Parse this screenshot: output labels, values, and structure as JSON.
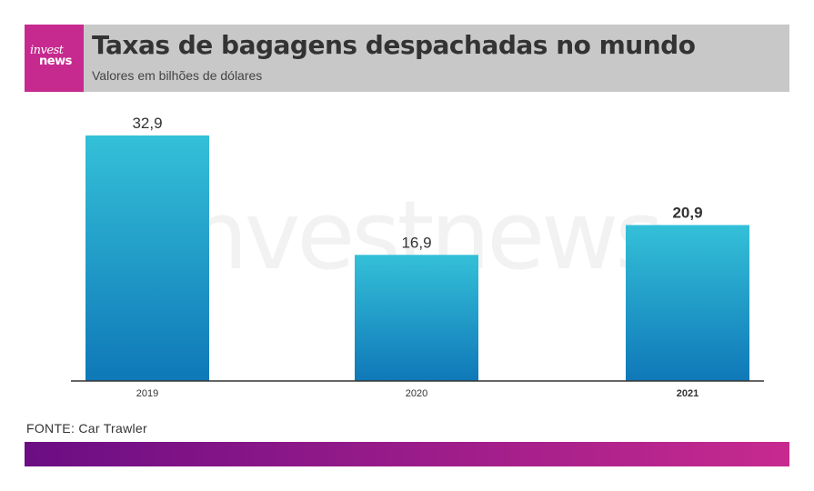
{
  "header": {
    "logo_top": "invest",
    "logo_bottom": "news",
    "title": "Taxas de bagagens despachadas no mundo",
    "subtitle": "Valores em bilhões de dólares"
  },
  "watermark": "investnews",
  "chart_data": {
    "type": "bar",
    "categories": [
      "2019",
      "2020",
      "2021"
    ],
    "values": [
      32.9,
      16.9,
      20.9
    ],
    "value_labels": [
      "32,9",
      "16,9",
      "20,9"
    ],
    "highlight": "2021",
    "ylim": [
      0,
      32.9
    ],
    "title": "Taxas de bagagens despachadas no mundo",
    "subtitle": "Valores em bilhões de dólares",
    "grid": false,
    "colors": {
      "bar_top": "#34c0d8",
      "bar_bottom": "#0f78b8",
      "axis": "#333333",
      "label": "#333333"
    }
  },
  "source": "FONTE: Car Trawler",
  "colors": {
    "header_bg": "#c8c8c8",
    "logo_bg": "#c72a8f",
    "footer_start": "#6b0d84",
    "footer_end": "#c72a8f"
  }
}
